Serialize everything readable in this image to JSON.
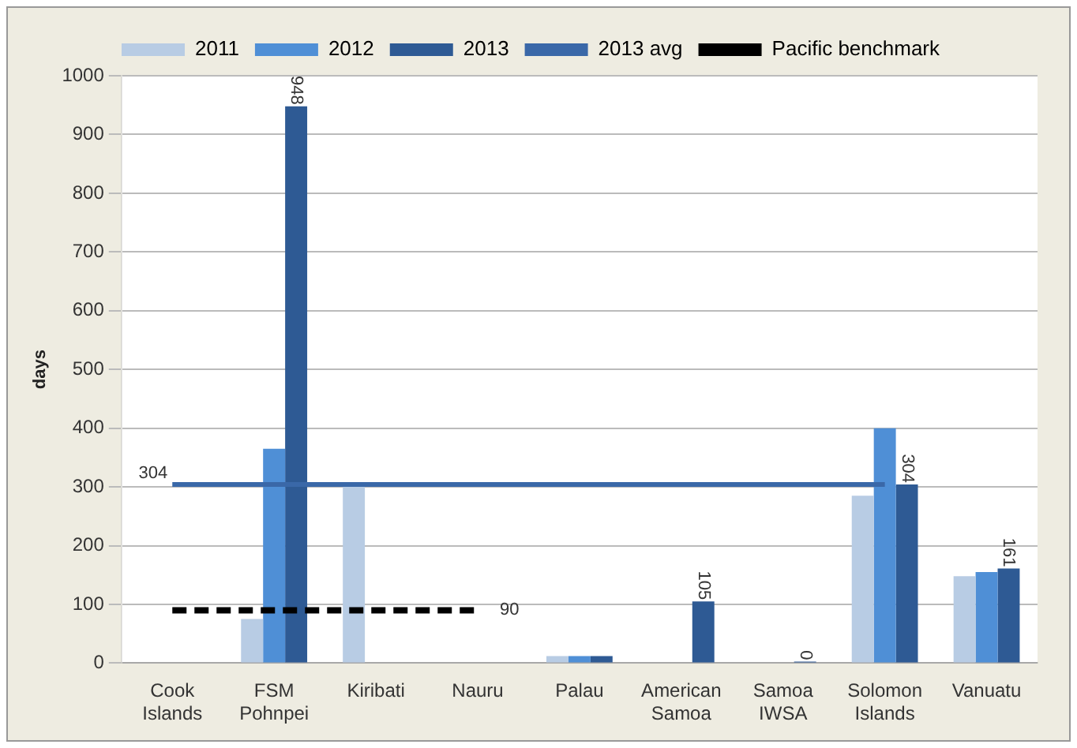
{
  "chart_data": {
    "type": "bar",
    "ylabel": "days",
    "categories": [
      "Cook Islands",
      "FSM Pohnpei",
      "Kiribati",
      "Nauru",
      "Palau",
      "American Samoa",
      "Samoa IWSA",
      "Solomon Islands",
      "Vanuatu"
    ],
    "series": [
      {
        "name": "2011",
        "color": "#b8cce4",
        "values": [
          null,
          75,
          305,
          null,
          12,
          null,
          null,
          285,
          148
        ]
      },
      {
        "name": "2012",
        "color": "#4f8fd6",
        "values": [
          null,
          365,
          null,
          null,
          12,
          null,
          null,
          400,
          155
        ]
      },
      {
        "name": "2013",
        "color": "#2e5a94",
        "values": [
          null,
          948,
          null,
          null,
          12,
          105,
          0,
          304,
          161
        ],
        "value_labels": [
          null,
          "948",
          null,
          null,
          null,
          "105",
          "0",
          "304",
          "161"
        ]
      },
      {
        "name": "2013 avg",
        "type": "line",
        "color": "#3a68a8",
        "line_style": "solid",
        "values": [
          304,
          304,
          304,
          304,
          304,
          304,
          304,
          304,
          null
        ],
        "value_labels": [
          "304",
          null,
          null,
          null,
          null,
          null,
          null,
          null,
          null
        ]
      },
      {
        "name": "Pacific benchmark",
        "type": "line",
        "color": "#000000",
        "line_style": "dashed",
        "values": [
          90,
          90,
          90,
          90,
          null,
          null,
          null,
          null,
          null
        ],
        "value_labels": [
          null,
          null,
          null,
          "90",
          null,
          null,
          null,
          null,
          null
        ]
      }
    ],
    "ylim": [
      0,
      1000
    ],
    "yticks": [
      0,
      100,
      200,
      300,
      400,
      500,
      600,
      700,
      800,
      900,
      1000
    ],
    "grid": "y",
    "legend": "top",
    "marker": "none"
  }
}
